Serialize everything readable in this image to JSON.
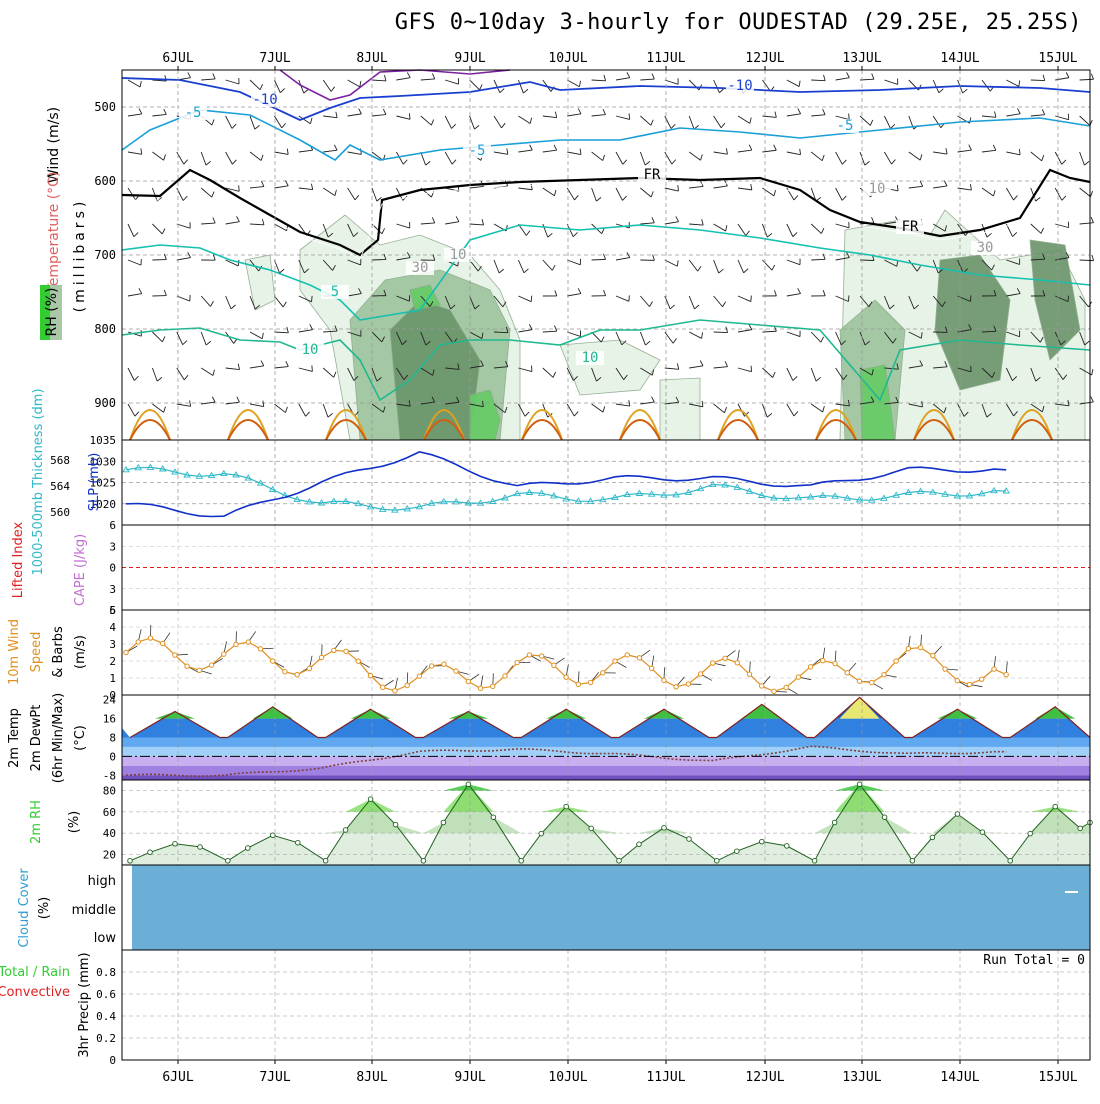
{
  "title": "GFS 0~10day 3-hourly for OUDESTAD (29.25E, 25.25S)",
  "colors": {
    "temp_cold": "#1a3fd0",
    "temp_mid": "#1a9fd8",
    "temp_cool": "#14c0b0",
    "temp_warm": "#e0a020",
    "temp_hot": "#d06010",
    "freezing": "#000000",
    "rh_light": "#e4f2e4",
    "rh_mid": "#9cc49c",
    "rh_dark": "#6a946a",
    "rh_bright": "#66cc66",
    "thickness": "#30b8c8",
    "slp": "#1030c8",
    "wind10": "#e09020",
    "lifted": "#e02020",
    "cloud": "#6baed6",
    "rh2m": "#33cc33"
  },
  "xaxis": {
    "labels": [
      "6JUL",
      "7JUL",
      "8JUL",
      "9JUL",
      "10JUL",
      "11JUL",
      "12JUL",
      "13JUL",
      "14JUL",
      "15JUL"
    ]
  },
  "panels": {
    "upper": {
      "ylabels": [
        "Wind (m/s)",
        "Temperature (°C)",
        "RH (%)",
        "(millibars)"
      ],
      "yticks": [
        "500",
        "600",
        "700",
        "800",
        "900"
      ],
      "contour_labels": [
        "-10",
        "-10",
        "-5",
        "-5",
        "-5",
        "5",
        "10",
        "10",
        "FR",
        "FR",
        "10",
        "30",
        "10",
        "30"
      ]
    },
    "slp": {
      "ylabel_left": "1000-500mb Thickness (dm)",
      "ylabel_right": "SLP (mb)",
      "thick_ticks": [
        "568",
        "564",
        "560"
      ],
      "slp_ticks": [
        "1035",
        "1030",
        "1025",
        "1020"
      ]
    },
    "cape": {
      "ylabel_a": "Lifted Index",
      "ylabel_b": "CAPE (J/kg)",
      "yticks": [
        "6",
        "3",
        "0",
        "3",
        "6"
      ]
    },
    "wind10": {
      "ylabel_a": "10m Wind",
      "ylabel_b": "Speed",
      "ylabel_c": "& Barbs",
      "ylabel_unit": "(m/s)",
      "yticks": [
        "5",
        "4",
        "3",
        "2",
        "1",
        "0"
      ]
    },
    "temp2m": {
      "ylabel_a": "2m Temp",
      "ylabel_b": "2m DewPt",
      "ylabel_c": "(6hr Min/Max)",
      "ylabel_unit": "(°C)",
      "yticks": [
        "24",
        "16",
        "8",
        "0",
        "-8"
      ]
    },
    "rh2m": {
      "ylabel_a": "2m RH",
      "ylabel_unit": "(%)",
      "yticks": [
        "80",
        "60",
        "40",
        "20"
      ]
    },
    "cloud": {
      "ylabel_a": "Cloud Cover",
      "ylabel_unit": "(%)",
      "levels": [
        "high",
        "middle",
        "low"
      ]
    },
    "precip": {
      "ylabel_a": "Total / Rain",
      "ylabel_b": "Convective",
      "ylabel_c": "3hr Precip (mm)",
      "yticks": [
        "0.8",
        "0.6",
        "0.4",
        "0.2",
        "0"
      ],
      "run_total": "Run Total = 0"
    }
  },
  "chart_data": [
    {
      "type": "line",
      "title": "",
      "panel": "Thickness / SLP",
      "x": [
        "6JUL",
        "7JUL",
        "8JUL",
        "9JUL",
        "10JUL",
        "11JUL",
        "12JUL",
        "13JUL",
        "14JUL",
        "15JUL"
      ],
      "series": [
        {
          "values": [
            1028,
            1027,
            1020,
            1019,
            1022,
            1021,
            1024,
            1021,
            1022,
            1023
          ]
        },
        {
          "values": [
            1020,
            1017,
            1025,
            1032,
            1024,
            1026,
            1026,
            1024,
            1028,
            1028
          ]
        }
      ]
    },
    {
      "type": "line",
      "title": "",
      "panel": "10m Wind Speed",
      "ylabel": "(m/s)",
      "ylim": [
        0,
        5
      ],
      "x": [
        "6JUL",
        "7JUL",
        "8JUL",
        "9JUL",
        "10JUL",
        "11JUL",
        "12JUL",
        "13JUL",
        "14JUL",
        "15JUL"
      ],
      "values": [
        2.5,
        2.3,
        2.0,
        0.8,
        1.5,
        1.5,
        1.3,
        1.0,
        2.0,
        1.2
      ]
    },
    {
      "type": "area",
      "title": "",
      "panel": "2m Temp",
      "ylabel": "(°C)",
      "ylim": [
        -10,
        26
      ],
      "x": [
        "6JUL",
        "7JUL",
        "8JUL",
        "9JUL",
        "10JUL",
        "11JUL",
        "12JUL",
        "13JUL",
        "14JUL",
        "15JUL"
      ],
      "series": [
        {
          "values": [
            19,
            21,
            20,
            19,
            20,
            20,
            22,
            25,
            20,
            21
          ]
        },
        {
          "values": [
            -8,
            -8,
            -5,
            2,
            3,
            1,
            -2,
            4,
            1,
            2
          ]
        }
      ]
    },
    {
      "type": "area",
      "title": "",
      "panel": "2m RH",
      "ylabel": "(%)",
      "ylim": [
        10,
        90
      ],
      "x": [
        "6JUL",
        "7JUL",
        "8JUL",
        "9JUL",
        "10JUL",
        "11JUL",
        "12JUL",
        "13JUL",
        "14JUL",
        "15JUL"
      ],
      "values": [
        30,
        38,
        72,
        86,
        65,
        45,
        32,
        86,
        58,
        65
      ]
    },
    {
      "type": "bar",
      "title": "",
      "panel": "3hr Precip",
      "ylabel": "3hr Precip (mm)",
      "ylim": [
        0,
        1
      ],
      "categories": [
        "6JUL",
        "7JUL",
        "8JUL",
        "9JUL",
        "10JUL",
        "11JUL",
        "12JUL",
        "13JUL",
        "14JUL",
        "15JUL"
      ],
      "values": [
        0,
        0,
        0,
        0,
        0,
        0,
        0,
        0,
        0,
        0
      ]
    }
  ]
}
